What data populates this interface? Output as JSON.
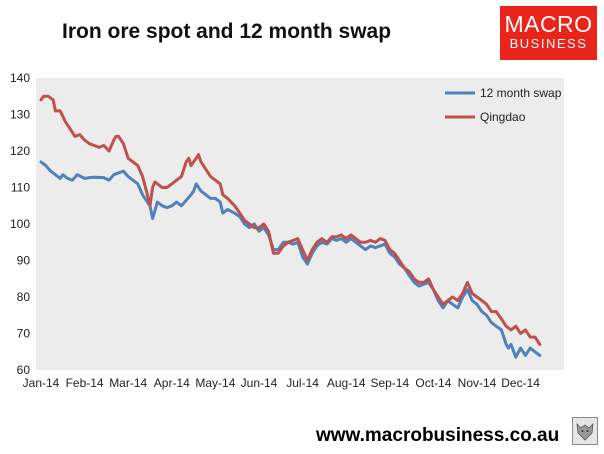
{
  "header": {
    "title": "Iron ore spot and 12 month swap",
    "logo_line1": "MACRO",
    "logo_line2": "BUSINESS",
    "logo_color": "#e8241b"
  },
  "footer": {
    "website": "www.macrobusiness.co.au",
    "wolf_icon": "wolf-icon"
  },
  "chart_data": {
    "type": "line",
    "title": "Iron ore spot and 12 month swap",
    "xlabel": "",
    "ylabel": "",
    "ylim": [
      60,
      140
    ],
    "yticks": [
      60,
      70,
      80,
      90,
      100,
      110,
      120,
      130,
      140
    ],
    "xlim": [
      0,
      11.5
    ],
    "xticks": [
      {
        "label": "Jan-14",
        "t": 0
      },
      {
        "label": "Feb-14",
        "t": 1
      },
      {
        "label": "Mar-14",
        "t": 2
      },
      {
        "label": "Apr-14",
        "t": 3
      },
      {
        "label": "May-14",
        "t": 4
      },
      {
        "label": "Jun-14",
        "t": 5
      },
      {
        "label": "Jul-14",
        "t": 6
      },
      {
        "label": "Aug-14",
        "t": 7
      },
      {
        "label": "Sep-14",
        "t": 8
      },
      {
        "label": "Oct-14",
        "t": 9
      },
      {
        "label": "Nov-14",
        "t": 10
      },
      {
        "label": "Dec-14",
        "t": 11
      }
    ],
    "grid": false,
    "legend_position": "top-right",
    "plot_background": "#ececec",
    "series": [
      {
        "name": "12 month swap",
        "color": "#4f81bd",
        "points": [
          [
            0.0,
            117
          ],
          [
            0.11,
            116
          ],
          [
            0.22,
            114.5
          ],
          [
            0.33,
            113.5
          ],
          [
            0.44,
            112.5
          ],
          [
            0.5,
            113.5
          ],
          [
            0.61,
            112.5
          ],
          [
            0.72,
            112
          ],
          [
            0.83,
            113.5
          ],
          [
            1.0,
            112.5
          ],
          [
            1.11,
            112.7
          ],
          [
            1.22,
            112.8
          ],
          [
            1.44,
            112.7
          ],
          [
            1.56,
            112
          ],
          [
            1.67,
            113.5
          ],
          [
            1.78,
            114
          ],
          [
            1.89,
            114.5
          ],
          [
            2.0,
            113
          ],
          [
            2.11,
            112
          ],
          [
            2.22,
            111
          ],
          [
            2.33,
            108
          ],
          [
            2.44,
            106
          ],
          [
            2.5,
            105
          ],
          [
            2.56,
            101.5
          ],
          [
            2.67,
            106
          ],
          [
            2.78,
            105
          ],
          [
            2.89,
            104.5
          ],
          [
            3.0,
            105
          ],
          [
            3.11,
            106
          ],
          [
            3.22,
            105
          ],
          [
            3.33,
            106.5
          ],
          [
            3.44,
            108
          ],
          [
            3.5,
            109
          ],
          [
            3.56,
            111
          ],
          [
            3.67,
            109
          ],
          [
            3.78,
            108
          ],
          [
            3.89,
            107
          ],
          [
            4.0,
            107
          ],
          [
            4.11,
            106
          ],
          [
            4.17,
            103
          ],
          [
            4.28,
            104
          ],
          [
            4.44,
            103
          ],
          [
            4.56,
            102
          ],
          [
            4.67,
            100
          ],
          [
            4.78,
            99
          ],
          [
            4.89,
            100
          ],
          [
            5.0,
            98
          ],
          [
            5.11,
            99
          ],
          [
            5.22,
            97
          ],
          [
            5.33,
            93
          ],
          [
            5.44,
            93
          ],
          [
            5.56,
            95
          ],
          [
            5.67,
            95
          ],
          [
            5.78,
            94.5
          ],
          [
            5.89,
            95
          ],
          [
            6.0,
            91
          ],
          [
            6.11,
            89
          ],
          [
            6.22,
            92
          ],
          [
            6.33,
            94
          ],
          [
            6.44,
            95
          ],
          [
            6.56,
            94.5
          ],
          [
            6.67,
            96
          ],
          [
            6.78,
            95.5
          ],
          [
            6.89,
            96
          ],
          [
            7.0,
            95
          ],
          [
            7.11,
            96
          ],
          [
            7.22,
            95
          ],
          [
            7.33,
            94
          ],
          [
            7.44,
            93
          ],
          [
            7.56,
            94
          ],
          [
            7.67,
            93.5
          ],
          [
            7.78,
            94
          ],
          [
            7.89,
            94.5
          ],
          [
            8.0,
            92
          ],
          [
            8.11,
            91
          ],
          [
            8.22,
            89
          ],
          [
            8.33,
            88
          ],
          [
            8.44,
            86
          ],
          [
            8.56,
            84
          ],
          [
            8.67,
            83
          ],
          [
            8.78,
            83.5
          ],
          [
            8.89,
            84
          ],
          [
            9.0,
            82
          ],
          [
            9.11,
            79
          ],
          [
            9.22,
            77
          ],
          [
            9.33,
            79
          ],
          [
            9.44,
            78
          ],
          [
            9.56,
            77
          ],
          [
            9.67,
            80
          ],
          [
            9.78,
            82
          ],
          [
            9.89,
            79
          ],
          [
            10.0,
            78
          ],
          [
            10.11,
            76
          ],
          [
            10.22,
            75
          ],
          [
            10.33,
            73
          ],
          [
            10.44,
            72
          ],
          [
            10.56,
            71
          ],
          [
            10.67,
            67
          ],
          [
            10.72,
            66
          ],
          [
            10.78,
            67
          ],
          [
            10.89,
            63.5
          ],
          [
            11.0,
            66
          ],
          [
            11.11,
            64
          ],
          [
            11.22,
            66
          ],
          [
            11.33,
            65
          ],
          [
            11.44,
            64
          ]
        ]
      },
      {
        "name": "Qingdao",
        "color": "#c0504d",
        "points": [
          [
            0.0,
            134
          ],
          [
            0.06,
            135
          ],
          [
            0.17,
            135
          ],
          [
            0.28,
            134
          ],
          [
            0.33,
            131
          ],
          [
            0.44,
            131
          ],
          [
            0.56,
            128
          ],
          [
            0.67,
            126
          ],
          [
            0.78,
            124
          ],
          [
            0.89,
            124.5
          ],
          [
            1.0,
            123
          ],
          [
            1.11,
            122
          ],
          [
            1.22,
            121.5
          ],
          [
            1.33,
            121
          ],
          [
            1.44,
            121.5
          ],
          [
            1.56,
            120
          ],
          [
            1.67,
            123
          ],
          [
            1.72,
            124
          ],
          [
            1.78,
            124
          ],
          [
            1.89,
            122
          ],
          [
            2.0,
            118
          ],
          [
            2.11,
            117
          ],
          [
            2.22,
            116
          ],
          [
            2.33,
            113
          ],
          [
            2.44,
            108
          ],
          [
            2.5,
            105
          ],
          [
            2.56,
            110
          ],
          [
            2.61,
            111.5
          ],
          [
            2.67,
            111
          ],
          [
            2.78,
            110
          ],
          [
            2.89,
            110
          ],
          [
            3.0,
            111
          ],
          [
            3.11,
            112
          ],
          [
            3.22,
            113
          ],
          [
            3.33,
            117
          ],
          [
            3.39,
            118
          ],
          [
            3.44,
            116
          ],
          [
            3.56,
            118
          ],
          [
            3.61,
            119
          ],
          [
            3.67,
            117
          ],
          [
            3.78,
            115
          ],
          [
            3.89,
            113
          ],
          [
            4.0,
            112
          ],
          [
            4.11,
            111
          ],
          [
            4.17,
            108
          ],
          [
            4.28,
            107
          ],
          [
            4.44,
            105
          ],
          [
            4.56,
            103
          ],
          [
            4.67,
            101
          ],
          [
            4.78,
            100
          ],
          [
            4.89,
            99
          ],
          [
            5.0,
            99
          ],
          [
            5.11,
            100
          ],
          [
            5.22,
            98
          ],
          [
            5.33,
            92
          ],
          [
            5.44,
            92
          ],
          [
            5.56,
            94
          ],
          [
            5.67,
            95
          ],
          [
            5.78,
            95.5
          ],
          [
            5.89,
            96
          ],
          [
            6.0,
            93
          ],
          [
            6.11,
            90
          ],
          [
            6.22,
            93
          ],
          [
            6.33,
            95
          ],
          [
            6.44,
            96
          ],
          [
            6.56,
            95
          ],
          [
            6.67,
            96.5
          ],
          [
            6.78,
            96.5
          ],
          [
            6.89,
            97
          ],
          [
            7.0,
            96
          ],
          [
            7.11,
            97
          ],
          [
            7.22,
            96
          ],
          [
            7.33,
            95
          ],
          [
            7.44,
            95
          ],
          [
            7.56,
            95.5
          ],
          [
            7.67,
            95
          ],
          [
            7.78,
            96
          ],
          [
            7.89,
            95.5
          ],
          [
            8.0,
            93
          ],
          [
            8.11,
            92
          ],
          [
            8.22,
            90
          ],
          [
            8.33,
            88
          ],
          [
            8.44,
            87
          ],
          [
            8.56,
            85
          ],
          [
            8.67,
            84
          ],
          [
            8.78,
            84
          ],
          [
            8.89,
            85
          ],
          [
            9.0,
            82
          ],
          [
            9.11,
            80
          ],
          [
            9.22,
            78
          ],
          [
            9.33,
            79
          ],
          [
            9.44,
            80
          ],
          [
            9.56,
            79
          ],
          [
            9.67,
            81
          ],
          [
            9.78,
            84
          ],
          [
            9.89,
            81
          ],
          [
            10.0,
            80
          ],
          [
            10.11,
            79
          ],
          [
            10.22,
            78
          ],
          [
            10.33,
            76
          ],
          [
            10.44,
            76
          ],
          [
            10.56,
            74
          ],
          [
            10.67,
            72
          ],
          [
            10.78,
            71
          ],
          [
            10.89,
            72
          ],
          [
            11.0,
            70
          ],
          [
            11.11,
            71
          ],
          [
            11.22,
            69
          ],
          [
            11.33,
            69
          ],
          [
            11.44,
            67
          ]
        ]
      }
    ]
  }
}
